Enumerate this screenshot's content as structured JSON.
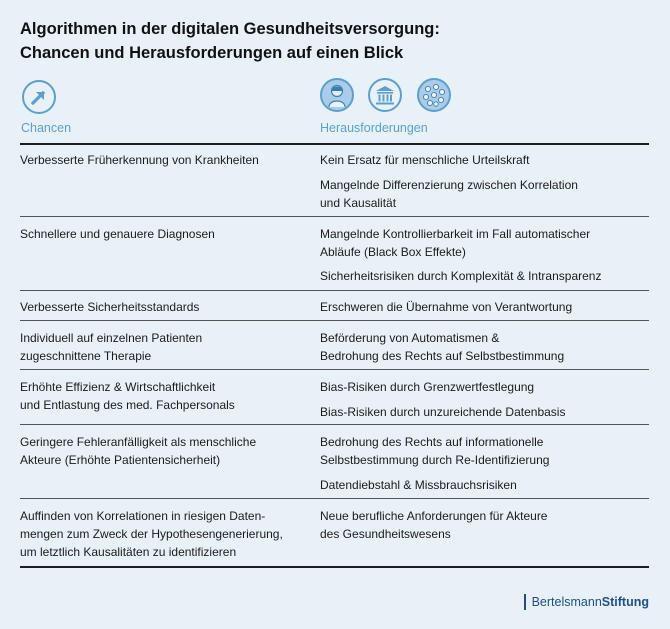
{
  "title_line1": "Algorithmen in der digitalen Gesundheitsversorgung:",
  "title_line2": "Chancen und Herausforderungen auf einen Blick",
  "columns": {
    "left": "Chancen",
    "right": "Herausforderungen"
  },
  "icons": {
    "chancen": "arrow-up-right-icon",
    "herausforderungen": [
      "person-icon",
      "institution-icon",
      "network-icon"
    ]
  },
  "rows": [
    {
      "left": [
        "Verbesserte Früherkennung von Krankheiten"
      ],
      "right": [
        [
          "Kein Ersatz für menschliche Urteilskraft"
        ],
        [
          "Mangelnde Differenzierung zwischen Korrelation",
          "und Kausalität"
        ]
      ]
    },
    {
      "left": [
        "Schnellere und genauere Diagnosen"
      ],
      "right": [
        [
          "Mangelnde Kontrollierbarkeit im Fall automatischer",
          "Abläufe (Black Box Effekte)"
        ],
        [
          "Sicherheitsrisiken durch Komplexität & Intransparenz"
        ]
      ]
    },
    {
      "left": [
        "Verbesserte Sicherheitsstandards"
      ],
      "right": [
        [
          "Erschweren die Übernahme von Verantwortung"
        ]
      ]
    },
    {
      "left": [
        "Individuell auf einzelnen Patienten",
        "zugeschnittene Therapie"
      ],
      "right": [
        [
          "Beförderung von Automatismen &",
          "Bedrohung des Rechts auf Selbstbestimmung"
        ]
      ]
    },
    {
      "left": [
        "Erhöhte Effizienz & Wirtschaftlichkeit",
        "und Entlastung des med. Fachpersonals"
      ],
      "right": [
        [
          "Bias-Risiken durch Grenzwertfestlegung"
        ],
        [
          "Bias-Risiken durch unzureichende Datenbasis"
        ]
      ]
    },
    {
      "left": [
        "Geringere Fehleranfälligkeit als menschliche",
        "Akteure (Erhöhte Patientensicherheit)"
      ],
      "right": [
        [
          "Bedrohung des Rechts auf informationelle",
          "Selbstbestimmung durch Re-Identifizierung"
        ],
        [
          "Datendiebstahl & Missbrauchsrisiken"
        ]
      ]
    },
    {
      "left": [
        "Auffinden von Korrelationen in riesigen Daten-",
        "mengen zum Zweck der Hypothesengenerierung,",
        "um letztlich Kausalitäten zu identifizieren"
      ],
      "right": [
        [
          "Neue berufliche Anforderungen für Akteure",
          "des Gesundheitswesens"
        ]
      ]
    }
  ],
  "brand": {
    "part1": "Bertelsmann",
    "part2": "Stiftung"
  },
  "colors": {
    "accent": "#5b9fd0",
    "background": "#e8f1f8",
    "brand": "#1c4f8f"
  }
}
